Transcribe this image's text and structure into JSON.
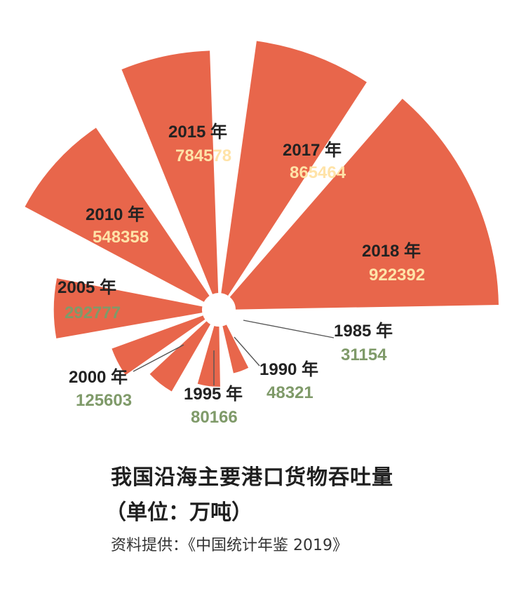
{
  "chart_data": {
    "type": "radial-bar",
    "unit": "万吨",
    "year_suffix": "年",
    "categories": [
      "1985",
      "1990",
      "1995",
      "2000",
      "2005",
      "2010",
      "2015",
      "2017",
      "2018"
    ],
    "values": [
      31154,
      48321,
      80166,
      125603,
      292777,
      548358,
      784578,
      865464,
      922392
    ],
    "bar_color": "#e8664b",
    "label_year_color": "#222222",
    "label_value_inside_color": "#ffe3a8",
    "label_value_outside_color": "#7f9a69"
  },
  "caption": {
    "title": "我国沿海主要港口货物吞吐量",
    "unit": "（单位：万吨）",
    "source": "资料提供：《中国统计年鉴 2019》"
  }
}
